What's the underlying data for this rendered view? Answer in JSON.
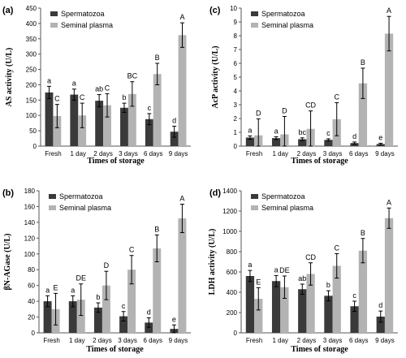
{
  "colors": {
    "spermatozoa": "#3a3a3a",
    "seminal_plasma": "#b3b3b3",
    "error_bar": "#000000",
    "axis": "#555555"
  },
  "legend": [
    "Spermatozoa",
    "Seminal plasma"
  ],
  "chart_data": [
    {
      "type": "bar",
      "panel_label": "(a)",
      "ylabel": "AS activity (U/L)",
      "xlabel": "Times of storage",
      "categories": [
        "Fresh",
        "1 day",
        "2 days",
        "3 days",
        "6 days",
        "9 days"
      ],
      "ylim": [
        0,
        450
      ],
      "yticks": [
        0,
        50,
        100,
        150,
        200,
        250,
        300,
        350,
        400,
        450
      ],
      "series": [
        {
          "name": "Spermatozoa",
          "values": [
            175,
            168,
            148,
            125,
            88,
            47
          ],
          "errors": [
            20,
            18,
            20,
            15,
            18,
            18
          ],
          "letters": [
            "a",
            "a",
            "ab",
            "b",
            "c",
            "d"
          ]
        },
        {
          "name": "Seminal plasma",
          "values": [
            98,
            100,
            133,
            170,
            235,
            362
          ],
          "errors": [
            38,
            40,
            38,
            40,
            35,
            40
          ],
          "letters": [
            "C",
            "C",
            "C",
            "BC",
            "B",
            "A"
          ]
        }
      ]
    },
    {
      "type": "bar",
      "panel_label": "(c)",
      "ylabel": "AcP activity (U/L)",
      "xlabel": "Times of storage",
      "categories": [
        "Fresh",
        "1 day",
        "2 days",
        "3 days",
        "6 days",
        "9 days"
      ],
      "ylim": [
        0,
        10
      ],
      "yticks": [
        0,
        1,
        2,
        3,
        4,
        5,
        6,
        7,
        8,
        9,
        10
      ],
      "series": [
        {
          "name": "Spermatozoa",
          "values": [
            0.62,
            0.58,
            0.5,
            0.45,
            0.22,
            0.15
          ],
          "errors": [
            0.12,
            0.1,
            0.1,
            0.08,
            0.08,
            0.06
          ],
          "letters": [
            "a",
            "a",
            "bc",
            "c",
            "d",
            "e"
          ]
        },
        {
          "name": "Seminal plasma",
          "values": [
            0.78,
            0.85,
            1.25,
            1.95,
            4.55,
            8.15
          ],
          "errors": [
            1.2,
            1.3,
            1.3,
            1.2,
            1.1,
            1.25
          ],
          "letters": [
            "D",
            "D",
            "CD",
            "C",
            "B",
            "A"
          ]
        }
      ]
    },
    {
      "type": "bar",
      "panel_label": "(b)",
      "ylabel": "βN-AGase (U/L)",
      "xlabel": "Times of storage",
      "categories": [
        "Fresh",
        "1 day",
        "2 days",
        "3 days",
        "6 days",
        "9 days"
      ],
      "ylim": [
        0,
        180
      ],
      "yticks": [
        0,
        20,
        40,
        60,
        80,
        100,
        120,
        140,
        160,
        180
      ],
      "series": [
        {
          "name": "Spermatozoa",
          "values": [
            40,
            40,
            32,
            21,
            13,
            5
          ],
          "errors": [
            7,
            7,
            6,
            6,
            6,
            5
          ],
          "letters": [
            "a",
            "a",
            "b",
            "c",
            "d",
            "e"
          ]
        },
        {
          "name": "Seminal plasma",
          "values": [
            30,
            42,
            60,
            80,
            107,
            145
          ],
          "errors": [
            20,
            20,
            18,
            18,
            17,
            18
          ],
          "letters": [
            "E",
            "DE",
            "D",
            "C",
            "B",
            "A"
          ]
        }
      ]
    },
    {
      "type": "bar",
      "panel_label": "(d)",
      "ylabel": "LDH activity (U/L)",
      "xlabel": "Times of storage",
      "categories": [
        "Fresh",
        "1 day",
        "2 days",
        "3 days",
        "6 days",
        "9 days"
      ],
      "ylim": [
        0,
        1400
      ],
      "yticks": [
        0,
        200,
        400,
        600,
        800,
        1000,
        1200,
        1400
      ],
      "series": [
        {
          "name": "Spermatozoa",
          "values": [
            560,
            510,
            430,
            365,
            262,
            160
          ],
          "errors": [
            55,
            55,
            50,
            50,
            50,
            55
          ],
          "letters": [
            "a",
            "a",
            "ab",
            "b",
            "c",
            "d"
          ]
        },
        {
          "name": "Seminal plasma",
          "values": [
            335,
            450,
            580,
            660,
            810,
            1130
          ],
          "errors": [
            110,
            110,
            110,
            120,
            120,
            100
          ],
          "letters": [
            "E",
            "DE",
            "CD",
            "C",
            "B",
            "A"
          ]
        }
      ]
    }
  ]
}
